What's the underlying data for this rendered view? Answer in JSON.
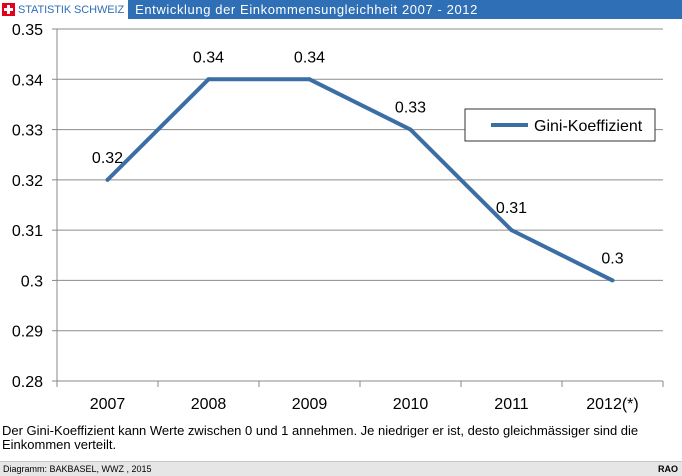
{
  "header": {
    "brand": "STATISTIK SCHWEIZ",
    "title": "Entwicklung der Einkommensungleichheit 2007 - 2012",
    "brand_color": "#2f6fb6",
    "flag_color": "#e2001a",
    "flag_icon": "swiss-cross-icon"
  },
  "chart_data": {
    "type": "line",
    "categories": [
      "2007",
      "2008",
      "2009",
      "2010",
      "2011",
      "2012(*)"
    ],
    "series": [
      {
        "name": "Gini-Koeffizient",
        "values": [
          0.32,
          0.34,
          0.34,
          0.33,
          0.31,
          0.3
        ],
        "data_labels": [
          "0.32",
          "0.34",
          "0.34",
          "0.33",
          "0.31",
          "0.3"
        ],
        "color": "#3a6ea5"
      }
    ],
    "ylim": [
      0.28,
      0.35
    ],
    "yticks": [
      0.28,
      0.29,
      0.3,
      0.31,
      0.32,
      0.33,
      0.34,
      0.35
    ],
    "ytick_labels": [
      "0.28",
      "0.29",
      "0.3",
      "0.31",
      "0.32",
      "0.33",
      "0.34",
      "0.35"
    ],
    "grid": true,
    "legend": "right"
  },
  "note": "Der Gini-Koeffizient kann Werte zwischen 0 und 1 annehmen. Je niedriger er ist, desto gleichmässiger sind die Einkommen verteilt.",
  "footer": {
    "source": "Diagramm: BAKBASEL, WWZ , 2015",
    "code": "RAO"
  }
}
